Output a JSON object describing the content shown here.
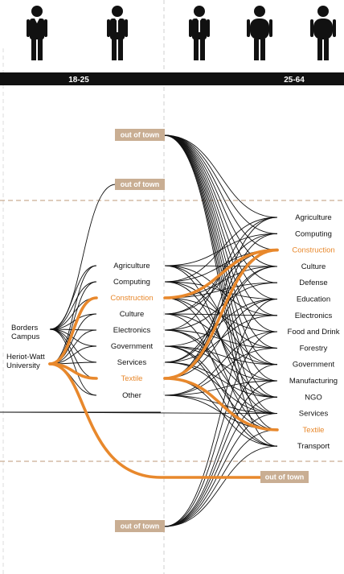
{
  "colors": {
    "highlight": "#e8882c",
    "tag": "#c9ae93",
    "bar": "#111111",
    "line": "#111111"
  },
  "age_groups": {
    "young": "18-25",
    "adult": "25-64"
  },
  "figures": [
    "slim-person-icon",
    "tie-person-icon",
    "tie-person-icon",
    "heavy-person-icon",
    "heavy-person-icon"
  ],
  "sources": [
    {
      "label": "Borders\nCampus"
    },
    {
      "label": "Heriot-Watt\nUniversity"
    }
  ],
  "study_fields": [
    "Agriculture",
    "Computing",
    "Construction",
    "Culture",
    "Electronics",
    "Government",
    "Services",
    "Textile",
    "Other"
  ],
  "highlight_study": [
    "Construction",
    "Textile"
  ],
  "work_sectors": [
    "Agriculture",
    "Computing",
    "Construction",
    "Culture",
    "Defense",
    "Education",
    "Electronics",
    "Food and Drink",
    "Forestry",
    "Government",
    "Manufacturing",
    "NGO",
    "Services",
    "Textile",
    "Transport"
  ],
  "highlight_work": [
    "Construction",
    "Textile"
  ],
  "out_of_town_label": "out of town"
}
